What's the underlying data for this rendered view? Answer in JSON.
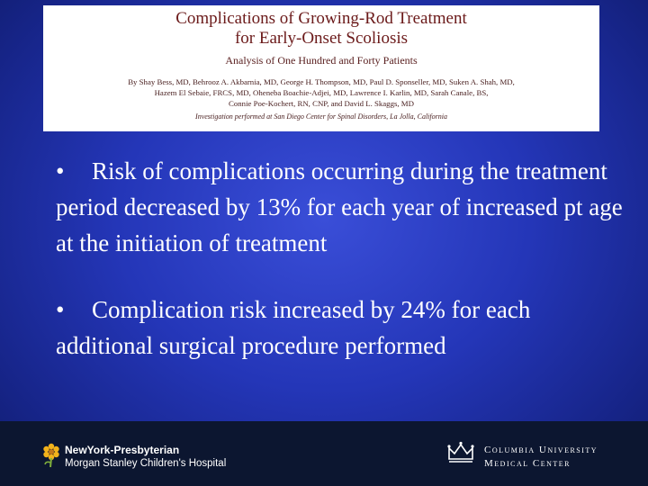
{
  "paper": {
    "title_line1": "Complications of Growing-Rod Treatment",
    "title_line2": "for Early-Onset Scoliosis",
    "subtitle": "Analysis of One Hundred and Forty Patients",
    "authors_line1": "By Shay Bess, MD, Behrooz A. Akbarnia, MD, George H. Thompson, MD, Paul D. Sponseller, MD, Suken A. Shah, MD,",
    "authors_line2": "Hazem El Sebaie, FRCS, MD, Oheneba Boachie-Adjei, MD, Lawrence I. Karlin, MD, Sarah Canale, BS,",
    "authors_line3": "Connie Poe-Kochert, RN, CNP, and David L. Skaggs, MD",
    "institution": "Investigation performed at San Diego Center for Spinal Disorders, La Jolla, California"
  },
  "bullets": [
    {
      "mark": "•",
      "text": "Risk of complications occurring during the treatment period decreased by 13% for each year of increased pt age at the initiation of treatment"
    },
    {
      "mark": "•",
      "text": "Complication risk increased by 24% for each additional surgical procedure performed"
    }
  ],
  "footer": {
    "nyp_name": "NewYork-Presbyterian",
    "nyp_hospital": "Morgan Stanley Children's Hospital",
    "cumc_line1": "Columbia University",
    "cumc_line2": "Medical Center",
    "icons": [
      "flower-logo-icon",
      "crown-logo-icon"
    ],
    "colors": {
      "background": "#0c1630",
      "slide": "#2436b8",
      "flower": "#f2b21b"
    }
  }
}
